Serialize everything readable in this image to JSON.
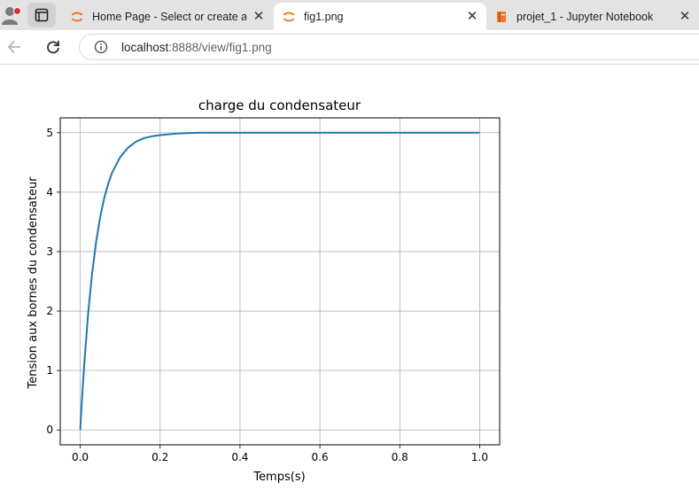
{
  "browser": {
    "tabs": [
      {
        "title": "Home Page - Select or create a notebook",
        "icon": "jupyter-icon",
        "active": false
      },
      {
        "title": "fig1.png",
        "icon": "jupyter-icon",
        "active": true
      },
      {
        "title": "projet_1 - Jupyter Notebook",
        "icon": "notebook-icon",
        "active": false
      }
    ],
    "url": {
      "host": "localhost",
      "path": ":8888/view/fig1.png"
    },
    "accent_colors": {
      "jupyter_orange": "#f37626",
      "profile_dot": "#d93025"
    }
  },
  "chart_data": {
    "type": "line",
    "title": "charge du condensateur",
    "xlabel": "Temps(s)",
    "ylabel": "Tension aux bornes du condensateur",
    "xlim": [
      -0.05,
      1.05
    ],
    "ylim": [
      -0.25,
      5.25
    ],
    "xticks": [
      0.0,
      0.2,
      0.4,
      0.6,
      0.8,
      1.0
    ],
    "xtick_labels": [
      "0.0",
      "0.2",
      "0.4",
      "0.6",
      "0.8",
      "1.0"
    ],
    "yticks": [
      0,
      1,
      2,
      3,
      4,
      5
    ],
    "ytick_labels": [
      "0",
      "1",
      "2",
      "3",
      "4",
      "5"
    ],
    "grid": true,
    "series": [
      {
        "color": "#1f77b4",
        "x": [
          0.0,
          0.005,
          0.01,
          0.02,
          0.03,
          0.04,
          0.05,
          0.06,
          0.07,
          0.08,
          0.1,
          0.12,
          0.14,
          0.16,
          0.18,
          0.2,
          0.25,
          0.3,
          0.4,
          0.5,
          0.6,
          0.7,
          0.8,
          0.9,
          1.0
        ],
        "y": [
          0.0,
          0.58,
          1.1,
          1.97,
          2.65,
          3.17,
          3.58,
          3.9,
          4.14,
          4.33,
          4.59,
          4.75,
          4.85,
          4.91,
          4.94,
          4.96,
          4.99,
          5.0,
          5.0,
          5.0,
          5.0,
          5.0,
          5.0,
          5.0,
          5.0
        ]
      }
    ]
  }
}
